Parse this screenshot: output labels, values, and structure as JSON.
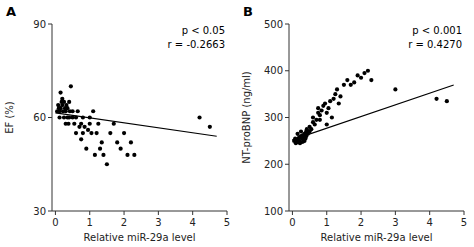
{
  "chart_data": [
    {
      "type": "scatter",
      "title": "A",
      "xlabel": "Relative miR-29a level",
      "ylabel": "EF (%)",
      "xlim": [
        -0.1,
        5
      ],
      "ylim": [
        30,
        90
      ],
      "xticks": [
        0,
        1,
        2,
        3,
        4,
        5
      ],
      "yticks": [
        30,
        60,
        90
      ],
      "annotations": [
        "p < 0.05",
        "r = -0.2663"
      ],
      "series": [
        {
          "type": "scatter",
          "color": "#000000",
          "x": [
            0.05,
            0.08,
            0.1,
            0.12,
            0.12,
            0.15,
            0.15,
            0.18,
            0.2,
            0.2,
            0.22,
            0.25,
            0.25,
            0.28,
            0.3,
            0.3,
            0.32,
            0.35,
            0.35,
            0.38,
            0.4,
            0.4,
            0.42,
            0.45,
            0.5,
            0.5,
            0.55,
            0.6,
            0.6,
            0.65,
            0.7,
            0.75,
            0.75,
            0.8,
            0.8,
            0.85,
            0.9,
            0.95,
            1.0,
            1.0,
            1.05,
            1.1,
            1.15,
            1.2,
            1.25,
            1.3,
            1.35,
            1.4,
            1.5,
            1.6,
            1.7,
            1.8,
            1.9,
            2.0,
            2.1,
            2.2,
            2.3,
            4.2,
            4.5
          ],
          "values": [
            62,
            64,
            63,
            60,
            62,
            63,
            68,
            65,
            64,
            66,
            62,
            60,
            65,
            63,
            58,
            62,
            64,
            60,
            63,
            58,
            60,
            65,
            62,
            70,
            60,
            62,
            58,
            55,
            60,
            62,
            57,
            53,
            58,
            55,
            60,
            57,
            50,
            56,
            58,
            60,
            55,
            62,
            48,
            55,
            58,
            50,
            52,
            48,
            45,
            55,
            58,
            52,
            50,
            55,
            48,
            52,
            48,
            60,
            57
          ]
        },
        {
          "type": "line",
          "color": "#000000",
          "x": [
            0.0,
            4.7
          ],
          "values": [
            61.5,
            53.98
          ]
        }
      ]
    },
    {
      "type": "scatter",
      "title": "B",
      "xlabel": "Relative miR-29a level",
      "ylabel": "NT-proBNP (ng/ml)",
      "xlim": [
        -0.1,
        5
      ],
      "ylim": [
        100,
        500
      ],
      "xticks": [
        0,
        1,
        2,
        3,
        4,
        5
      ],
      "yticks": [
        100,
        200,
        300,
        400,
        500
      ],
      "annotations": [
        "p < 0.001",
        "r = 0.4270"
      ],
      "series": [
        {
          "type": "scatter",
          "color": "#000000",
          "x": [
            0.05,
            0.08,
            0.1,
            0.12,
            0.15,
            0.15,
            0.18,
            0.2,
            0.2,
            0.22,
            0.25,
            0.25,
            0.28,
            0.3,
            0.3,
            0.32,
            0.35,
            0.35,
            0.38,
            0.4,
            0.4,
            0.42,
            0.45,
            0.5,
            0.5,
            0.55,
            0.6,
            0.6,
            0.65,
            0.7,
            0.75,
            0.75,
            0.8,
            0.8,
            0.85,
            0.9,
            0.95,
            1.0,
            1.0,
            1.05,
            1.1,
            1.15,
            1.2,
            1.25,
            1.3,
            1.35,
            1.4,
            1.5,
            1.6,
            1.7,
            1.8,
            1.9,
            2.0,
            2.1,
            2.2,
            2.3,
            3.0,
            4.2,
            4.5
          ],
          "values": [
            250,
            255,
            245,
            252,
            248,
            265,
            255,
            250,
            258,
            245,
            260,
            270,
            255,
            248,
            262,
            258,
            250,
            265,
            255,
            270,
            260,
            275,
            265,
            270,
            280,
            275,
            290,
            300,
            285,
            295,
            310,
            320,
            305,
            295,
            315,
            325,
            330,
            285,
            310,
            320,
            335,
            300,
            340,
            350,
            360,
            330,
            345,
            370,
            380,
            370,
            375,
            390,
            385,
            395,
            400,
            380,
            360,
            340,
            335
          ]
        },
        {
          "type": "line",
          "color": "#000000",
          "x": [
            0.0,
            4.7
          ],
          "values": [
            252.0,
            369.5
          ]
        }
      ]
    }
  ]
}
